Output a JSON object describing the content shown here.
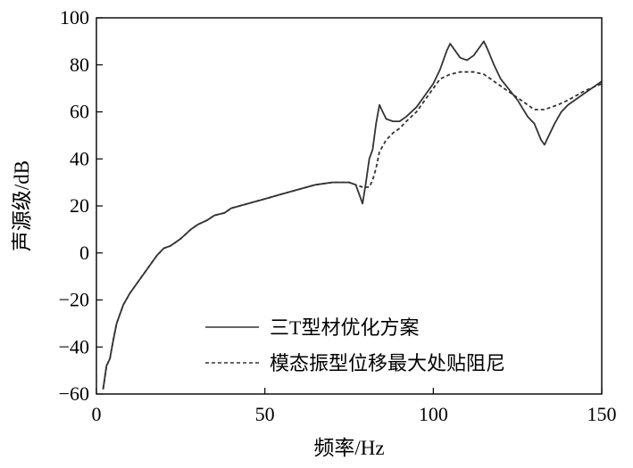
{
  "chart_data": {
    "type": "line",
    "title": "",
    "xlabel": "频率/Hz",
    "ylabel": "声源级/dB",
    "xlim": [
      0,
      150
    ],
    "ylim": [
      -60,
      100
    ],
    "xticks": [
      0,
      50,
      100,
      150
    ],
    "yticks": [
      -60,
      -40,
      -20,
      0,
      20,
      40,
      60,
      80,
      100
    ],
    "grid": false,
    "legend_position": "bottom-right",
    "series": [
      {
        "name": "三T型材优化方案",
        "style": "solid",
        "color": "#333333",
        "x": [
          2,
          3,
          4,
          5,
          6,
          7,
          8,
          10,
          12,
          14,
          16,
          18,
          20,
          22,
          25,
          28,
          30,
          33,
          35,
          38,
          40,
          45,
          50,
          55,
          60,
          65,
          70,
          75,
          77,
          78,
          79,
          80,
          81,
          82,
          83,
          84,
          85,
          86,
          88,
          90,
          92,
          95,
          98,
          100,
          102,
          104,
          105,
          106,
          108,
          110,
          112,
          114,
          115,
          116,
          118,
          120,
          125,
          128,
          130,
          132,
          133,
          134,
          136,
          138,
          140,
          145,
          150
        ],
        "y": [
          -58,
          -48,
          -45,
          -37,
          -30,
          -26,
          -22,
          -17,
          -13,
          -9,
          -5,
          -1,
          2,
          3,
          6,
          10,
          12,
          14,
          16,
          17,
          19,
          21,
          23,
          25,
          27,
          29,
          30,
          30,
          29,
          25,
          21,
          30,
          40,
          44,
          55,
          63,
          60,
          57,
          56,
          56,
          58,
          62,
          68,
          72,
          78,
          86,
          89,
          87,
          83,
          82,
          84,
          88,
          90,
          87,
          80,
          74,
          65,
          58,
          55,
          48,
          46,
          49,
          55,
          60,
          63,
          68,
          73
        ]
      },
      {
        "name": "模态振型位移最大处贴阻尼",
        "style": "dashed",
        "color": "#333333",
        "x": [
          2,
          3,
          4,
          5,
          6,
          7,
          8,
          10,
          12,
          14,
          16,
          18,
          20,
          22,
          25,
          28,
          30,
          33,
          35,
          38,
          40,
          45,
          50,
          55,
          60,
          65,
          70,
          75,
          77,
          79,
          80,
          81,
          82,
          83,
          84,
          86,
          88,
          90,
          92,
          95,
          98,
          100,
          102,
          105,
          108,
          110,
          112,
          115,
          118,
          120,
          125,
          128,
          130,
          133,
          135,
          137,
          140,
          145,
          150
        ],
        "y": [
          -58,
          -48,
          -45,
          -37,
          -30,
          -26,
          -22,
          -17,
          -13,
          -9,
          -5,
          -1,
          2,
          3,
          6,
          10,
          12,
          14,
          16,
          17,
          19,
          21,
          23,
          25,
          27,
          29,
          30,
          30,
          29,
          28,
          28,
          28,
          31,
          36,
          43,
          48,
          51,
          53,
          56,
          60,
          66,
          70,
          74,
          76,
          77,
          77,
          77,
          76,
          73,
          71,
          66,
          63,
          61,
          61,
          62,
          63,
          65,
          69,
          72
        ]
      }
    ]
  }
}
